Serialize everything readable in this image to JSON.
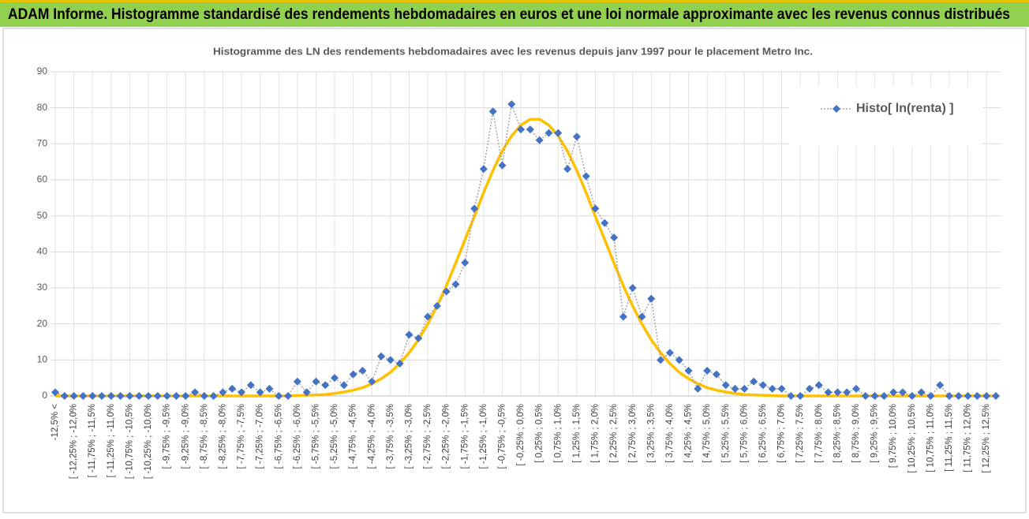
{
  "header": {
    "title": "ADAM Informe. Histogramme standardisé des rendements hebdomadaires en euros et une loi normale approximante avec les revenus connus distribués"
  },
  "chart_data": {
    "type": "line",
    "title": "Histogramme des LN des rendements hebdomadaires avec les revenus depuis janv 1997 pour le placement Metro Inc.",
    "categories": [
      "-12,5% <",
      null,
      "[ -12,25% ; -12,0%",
      null,
      "[ -11,75% ; -11,5%",
      null,
      "[ -11,25% ; -11,0%",
      null,
      "[ -10,75% ; -10,5%",
      null,
      "[ -10,25% ; -10,0%",
      null,
      "[ -9,75% ; -9,5%",
      null,
      "[ -9,25% ; -9,0%",
      null,
      "[ -8,75% ; -8,5%",
      null,
      "[ -8,25% ; -8,0%",
      null,
      "[ -7,75% ; -7,5%",
      null,
      "[ -7,25% ; -7,0%",
      null,
      "[ -6,75% ; -6,5%",
      null,
      "[ -6,25% ; -6,0%",
      null,
      "[ -5,75% ; -5,5%",
      null,
      "[ -5,25% ; -5,0%",
      null,
      "[ -4,75% ; -4,5%",
      null,
      "[ -4,25% ; -4,0%",
      null,
      "[ -3,75% ; -3,5%",
      null,
      "[ -3,25% ; -3,0%",
      null,
      "[ -2,75% ; -2,5%",
      null,
      "[ -2,25% ; -2,0%",
      null,
      "[ -1,75% ; -1,5%",
      null,
      "[ -1,25% ; -1,0%",
      null,
      "[ -0,75% ; -0,5%",
      null,
      "[ -0,25% ; 0,0%",
      null,
      "[ 0,25% ; 0,5%",
      null,
      "[ 0,75% ; 1,0%",
      null,
      "[ 1,25% ; 1,5%",
      null,
      "[ 1,75% ; 2,0%",
      null,
      "[ 2,25% ; 2,5%",
      null,
      "[ 2,75% ; 3,0%",
      null,
      "[ 3,25% ; 3,5%",
      null,
      "[ 3,75% ; 4,0%",
      null,
      "[ 4,25% ; 4,5%",
      null,
      "[ 4,75% ; 5,0%",
      null,
      "[ 5,25% ; 5,5%",
      null,
      "[ 5,75% ; 6,0%",
      null,
      "[ 6,25% ; 6,5%",
      null,
      "[ 6,75% ; 7,0%",
      null,
      "[ 7,25% ; 7,5%",
      null,
      "[ 7,75% ; 8,0%",
      null,
      "[ 8,25% ; 8,5%",
      null,
      "[ 8,75% ; 9,0%",
      null,
      "[ 9,25% ; 9,5%",
      null,
      "[ 9,75% ; 10,0%",
      null,
      "[ 10,25% ; 10,5%",
      null,
      "[ 10,75% ; 11,0%",
      null,
      "[ 11,25% ; 11,5%",
      null,
      "[ 11,75% ; 12,0%",
      null,
      "[ 12,25% ; 12,5%",
      null
    ],
    "series": [
      {
        "name": "Histo[ ln(renta) ]",
        "color": "#4472c4",
        "marker": "diamond",
        "line_style": "dotted",
        "line_color": "#a6a6a6",
        "values": [
          1,
          0,
          0,
          0,
          0,
          0,
          0,
          0,
          0,
          0,
          0,
          0,
          0,
          0,
          0,
          1,
          0,
          0,
          1,
          2,
          1,
          3,
          1,
          2,
          0,
          0,
          4,
          1,
          4,
          3,
          5,
          3,
          6,
          7,
          4,
          11,
          10,
          9,
          17,
          16,
          22,
          25,
          29,
          31,
          37,
          52,
          63,
          79,
          64,
          81,
          74,
          74,
          71,
          73,
          73,
          63,
          72,
          61,
          52,
          48,
          44,
          22,
          30,
          22,
          27,
          10,
          12,
          10,
          7,
          2,
          7,
          6,
          3,
          2,
          2,
          4,
          3,
          2,
          2,
          0,
          0,
          2,
          3,
          1,
          1,
          1,
          2,
          0,
          0,
          0,
          1,
          1,
          0,
          1,
          0,
          3,
          0,
          0,
          0,
          0,
          0,
          0
        ]
      },
      {
        "color": "#ffc000",
        "line_style": "solid",
        "values": [
          0,
          0,
          0,
          0,
          0,
          0,
          0,
          0,
          0,
          0,
          0,
          0,
          0,
          0,
          0,
          0,
          0,
          0,
          0,
          0,
          0,
          0,
          0,
          0,
          0,
          0,
          0.1,
          0.2,
          0.3,
          0.4,
          0.7,
          1.1,
          1.6,
          2.3,
          3.4,
          4.8,
          6.6,
          9.0,
          12.0,
          15.6,
          20.0,
          25.0,
          30.6,
          36.9,
          43.4,
          49.8,
          56.5,
          62.6,
          68.0,
          72.2,
          75.2,
          76.8,
          76.8,
          75.2,
          72.2,
          68.0,
          62.6,
          56.5,
          49.8,
          43.4,
          36.9,
          30.6,
          25.0,
          20.0,
          15.6,
          12.0,
          9.0,
          6.6,
          4.8,
          3.4,
          2.3,
          1.6,
          1.1,
          0.7,
          0.4,
          0.3,
          0.2,
          0.1,
          0,
          0,
          0,
          0,
          0,
          0,
          0,
          0,
          0,
          0,
          0,
          0,
          0,
          0,
          0,
          0,
          0,
          0,
          0,
          0,
          0,
          0,
          0,
          0
        ]
      }
    ],
    "ylim": [
      0,
      90
    ],
    "yticks": [
      0,
      10,
      20,
      30,
      40,
      50,
      60,
      70,
      80,
      90
    ],
    "grid": true,
    "legend": "upper right"
  }
}
